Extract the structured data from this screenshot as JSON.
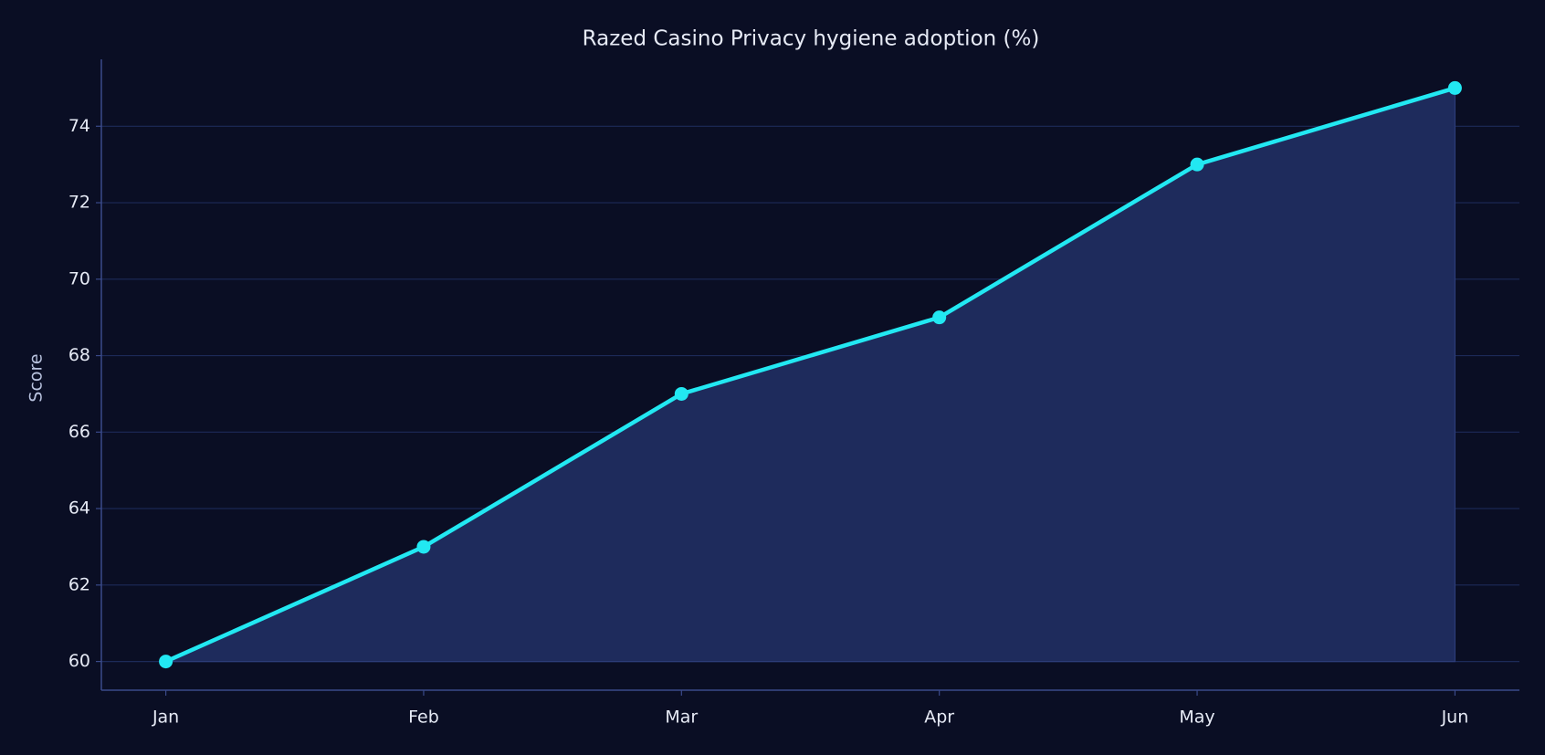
{
  "chart_data": {
    "type": "line",
    "title": "Razed Casino Privacy hygiene adoption (%)",
    "y_label": "Score",
    "categories": [
      "Jan",
      "Feb",
      "Mar",
      "Apr",
      "May",
      "Jun"
    ],
    "series": [
      {
        "color": "#22e8f2",
        "values": [
          60,
          63,
          67,
          69,
          73,
          75
        ]
      }
    ],
    "area": true,
    "ylim": [
      59.25,
      75.75
    ],
    "yticks": [
      60,
      62,
      64,
      66,
      68,
      70,
      72,
      74
    ],
    "grid": true
  }
}
